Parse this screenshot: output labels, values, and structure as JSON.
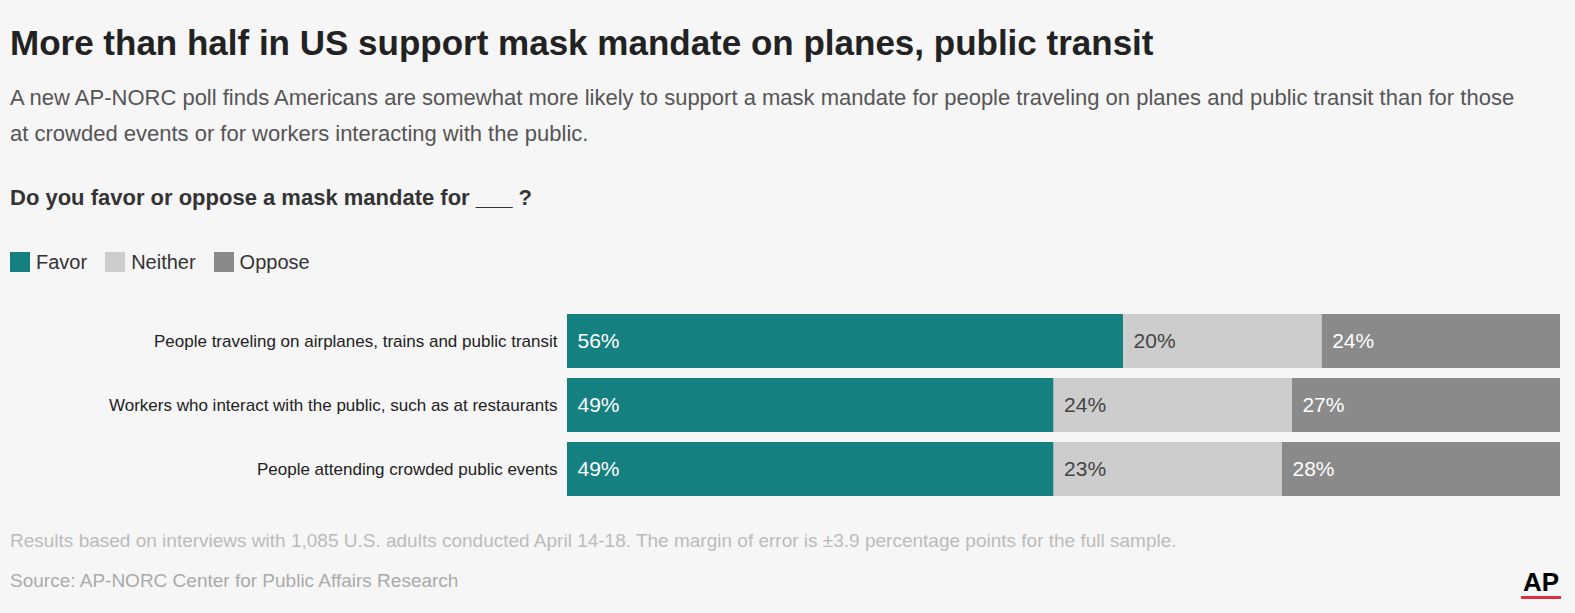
{
  "chart_data": {
    "type": "bar",
    "title": "More than half in US support mask mandate on planes, public transit",
    "subtitle": "A new AP-NORC poll finds Americans are somewhat more likely to support a mask mandate for people traveling on planes and public transit than for those at crowded events or for workers interacting with the public.",
    "question": "Do you favor or oppose a mask mandate for ___ ?",
    "note": "Results based on interviews with 1,085 U.S. adults conducted April 14-18. The margin of error is ±3.9 percentage points for the full sample.",
    "source": "Source: AP-NORC Center for Public Affairs Research",
    "logo": "AP",
    "orientation": "horizontal",
    "stacked": true,
    "data_labels": true,
    "tick_labels": "y",
    "legend": "top-left",
    "xlim": [
      0,
      100
    ],
    "categories": [
      "People traveling on airplanes, trains and public transit",
      "Workers who interact with the public, such as at restaurants",
      "People attending crowded public events"
    ],
    "series": [
      {
        "name": "Favor",
        "color": "#14807f",
        "values": [
          56,
          49,
          49
        ],
        "value_labels": [
          "56%",
          "49%",
          "49%"
        ]
      },
      {
        "name": "Neither",
        "color": "#cdcdcd",
        "values": [
          20,
          24,
          23
        ],
        "value_labels": [
          "20%",
          "24%",
          "23%"
        ]
      },
      {
        "name": "Oppose",
        "color": "#8a8a8a",
        "values": [
          24,
          27,
          28
        ],
        "value_labels": [
          "24%",
          "27%",
          "28%"
        ]
      }
    ]
  }
}
